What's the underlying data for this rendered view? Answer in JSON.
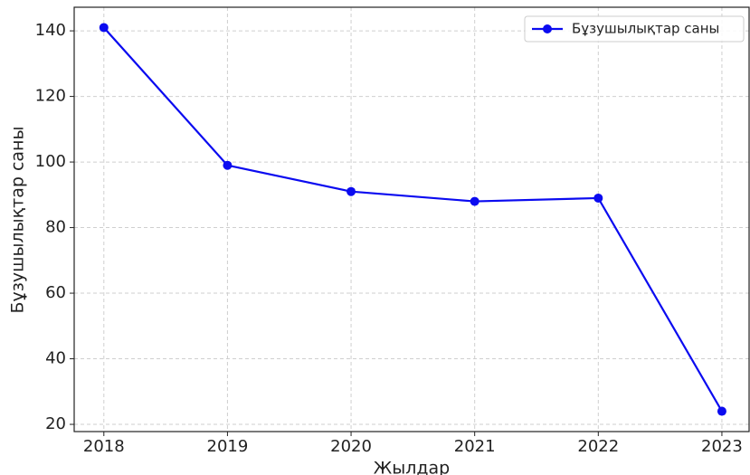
{
  "chart_data": {
    "type": "line",
    "x_label": "Жылдар",
    "y_label": "Бұзушылықтар саны",
    "x": [
      2018,
      2019,
      2020,
      2021,
      2022,
      2023
    ],
    "series": [
      {
        "name": "Бұзушылықтар саны",
        "color": "#0b0bf0",
        "values": [
          141,
          99,
          91,
          88,
          89,
          24
        ]
      }
    ],
    "xlim": [
      2017.76,
      2023.22
    ],
    "xticks": [
      2018,
      2019,
      2020,
      2021,
      2022,
      2023
    ],
    "ylim": [
      17.8,
      147.2
    ],
    "yticks": [
      20,
      40,
      60,
      80,
      100,
      120,
      140
    ],
    "grid": true,
    "legend": "upper right"
  }
}
